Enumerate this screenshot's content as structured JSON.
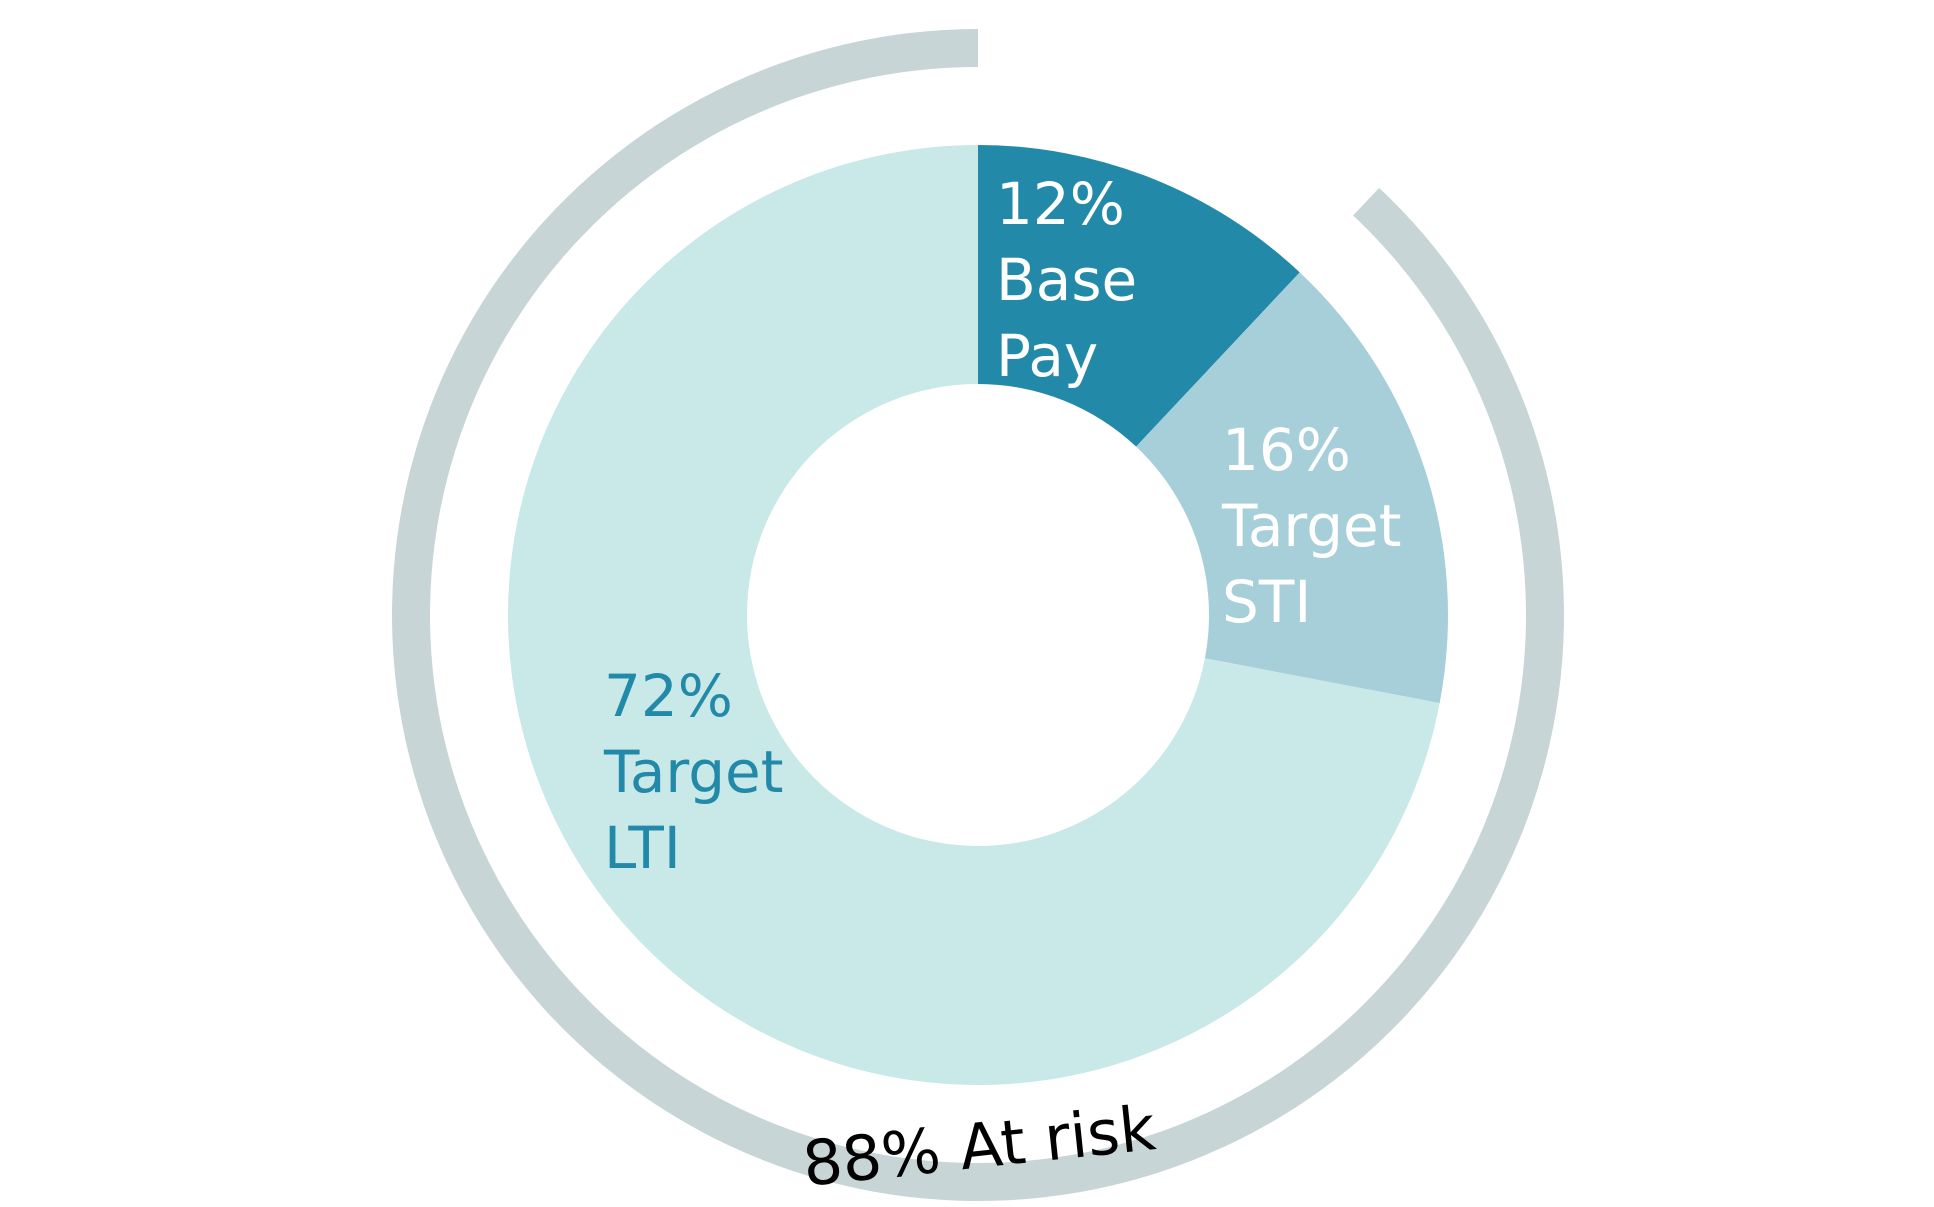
{
  "chart_data": {
    "type": "donut",
    "categories": [
      "Base Pay",
      "Target STI",
      "Target LTI"
    ],
    "values": [
      12,
      16,
      72
    ],
    "value_labels": [
      "12%",
      "16%",
      "72%"
    ],
    "colors": [
      "#2289a8",
      "#a6cfda",
      "#c9e8e8"
    ],
    "at_risk": {
      "value": 88,
      "label": "88% At risk",
      "color": "#c8d5d7"
    }
  }
}
